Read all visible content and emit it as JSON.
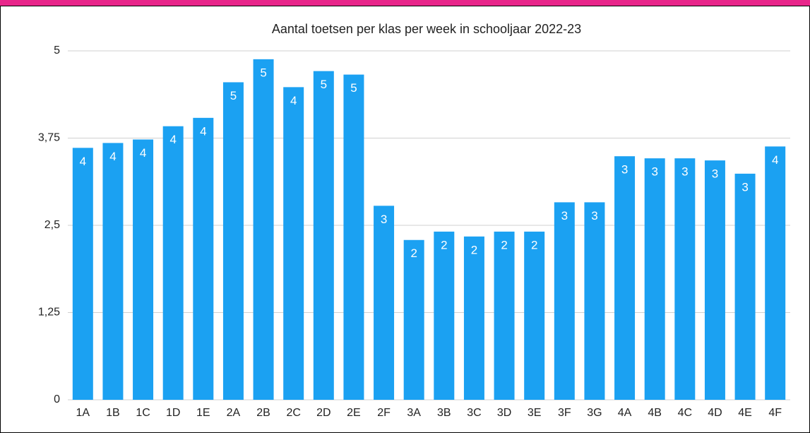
{
  "chart_data": {
    "type": "bar",
    "title": "Aantal toetsen per klas per week in schooljaar 2022-23",
    "categories": [
      "1A",
      "1B",
      "1C",
      "1D",
      "1E",
      "2A",
      "2B",
      "2C",
      "2D",
      "2E",
      "2F",
      "3A",
      "3B",
      "3C",
      "3D",
      "3E",
      "3F",
      "3G",
      "4A",
      "4B",
      "4C",
      "4D",
      "4E",
      "4F"
    ],
    "values": [
      3.61,
      3.68,
      3.73,
      3.92,
      4.04,
      4.55,
      4.88,
      4.48,
      4.71,
      4.66,
      2.78,
      2.29,
      2.41,
      2.34,
      2.41,
      2.41,
      2.83,
      2.83,
      3.49,
      3.46,
      3.46,
      3.43,
      3.24,
      3.63
    ],
    "value_labels": [
      "4",
      "4",
      "4",
      "4",
      "4",
      "5",
      "5",
      "4",
      "5",
      "5",
      "3",
      "2",
      "2",
      "2",
      "2",
      "2",
      "3",
      "3",
      "3",
      "3",
      "3",
      "3",
      "3",
      "4"
    ],
    "color": "#1ba1f2",
    "ylim": [
      0,
      5
    ],
    "yticks": [
      0,
      {
        "value": 1.25,
        "label": "1,25"
      },
      {
        "value": 2.5,
        "label": "2,5"
      },
      {
        "value": 3.75,
        "label": "3,75"
      },
      5
    ],
    "grid": true
  }
}
